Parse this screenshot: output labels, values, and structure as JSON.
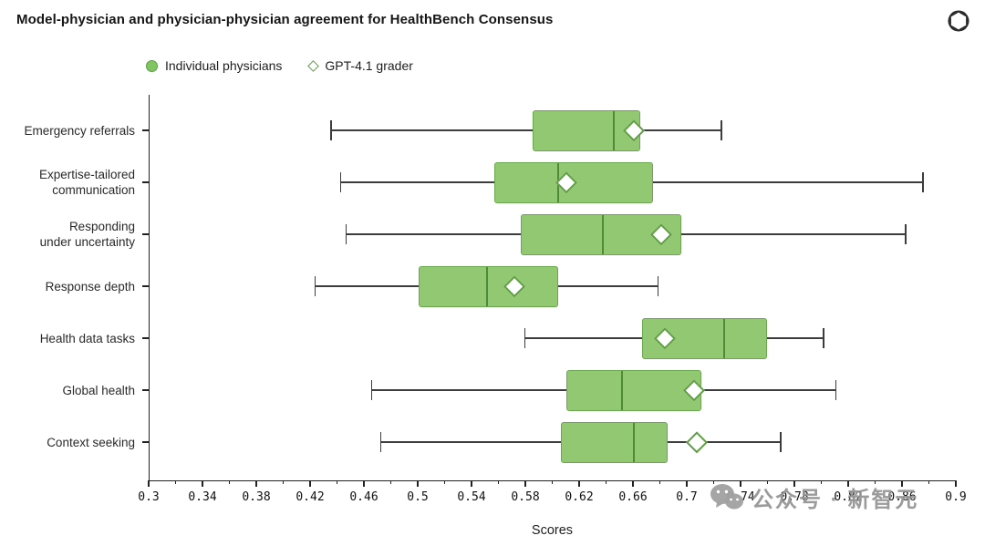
{
  "header": {
    "logo_name": "openai-logo"
  },
  "legend_note": "legend rendered from chart_data.legend.entries",
  "watermark": {
    "icon": "wechat-icon",
    "text": "公众号 · 新智元"
  },
  "chart_data": {
    "type": "boxplot-horizontal",
    "title": "Model-physician and physician-physician agreement for HealthBench Consensus",
    "xlabel": "Scores",
    "ylabel": "",
    "xlim": [
      0.3,
      0.9
    ],
    "x_major_ticks": [
      0.3,
      0.34,
      0.38,
      0.42,
      0.46,
      0.5,
      0.54,
      0.58,
      0.62,
      0.66,
      0.7,
      0.74,
      0.78,
      0.82,
      0.86,
      0.9
    ],
    "x_tick_labels": [
      "0.3",
      "0.34",
      "0.38",
      "0.42",
      "0.46",
      "0.5",
      "0.54",
      "0.58",
      "0.62",
      "0.66",
      "0.7",
      "0.74",
      "0.78",
      "0.82",
      "0.86",
      "0.9"
    ],
    "x_minor_ticks": [
      0.32,
      0.36,
      0.4,
      0.44,
      0.48,
      0.52,
      0.56,
      0.6,
      0.64,
      0.68,
      0.72,
      0.76,
      0.8,
      0.84,
      0.88
    ],
    "grid": false,
    "legend": {
      "position": "top-left",
      "entries": [
        {
          "label": "Individual physicians",
          "marker": "filled-green-circle"
        },
        {
          "label": "GPT-4.1 grader",
          "marker": "open-green-diamond"
        }
      ]
    },
    "categories": [
      "Emergency referrals",
      "Expertise-tailored\ncommunication",
      "Responding\nunder uncertainty",
      "Response depth",
      "Health data tasks",
      "Global health",
      "Context seeking"
    ],
    "series": [
      {
        "name": "Individual physicians",
        "type": "box",
        "boxes": [
          {
            "whisker_low": 0.435,
            "q1": 0.585,
            "median": 0.645,
            "q3": 0.665,
            "whisker_high": 0.725
          },
          {
            "whisker_low": 0.442,
            "q1": 0.556,
            "median": 0.604,
            "q3": 0.674,
            "whisker_high": 0.875
          },
          {
            "whisker_low": 0.446,
            "q1": 0.576,
            "median": 0.637,
            "q3": 0.695,
            "whisker_high": 0.862
          },
          {
            "whisker_low": 0.423,
            "q1": 0.5,
            "median": 0.551,
            "q3": 0.604,
            "whisker_high": 0.678
          },
          {
            "whisker_low": 0.579,
            "q1": 0.666,
            "median": 0.727,
            "q3": 0.759,
            "whisker_high": 0.801
          },
          {
            "whisker_low": 0.465,
            "q1": 0.61,
            "median": 0.651,
            "q3": 0.71,
            "whisker_high": 0.81
          },
          {
            "whisker_low": 0.472,
            "q1": 0.606,
            "median": 0.66,
            "q3": 0.685,
            "whisker_high": 0.769
          }
        ]
      },
      {
        "name": "GPT-4.1 grader",
        "type": "diamond-point",
        "values": [
          0.66,
          0.61,
          0.68,
          0.571,
          0.683,
          0.705,
          0.707
        ]
      }
    ],
    "colors": {
      "box_fill": "#92c871",
      "box_edge": "#69a84f",
      "median_line": "#4f8a38",
      "whisker": "#3c3c3c",
      "diamond_fill": "#ffffff",
      "diamond_edge": "#5f9e43"
    }
  }
}
